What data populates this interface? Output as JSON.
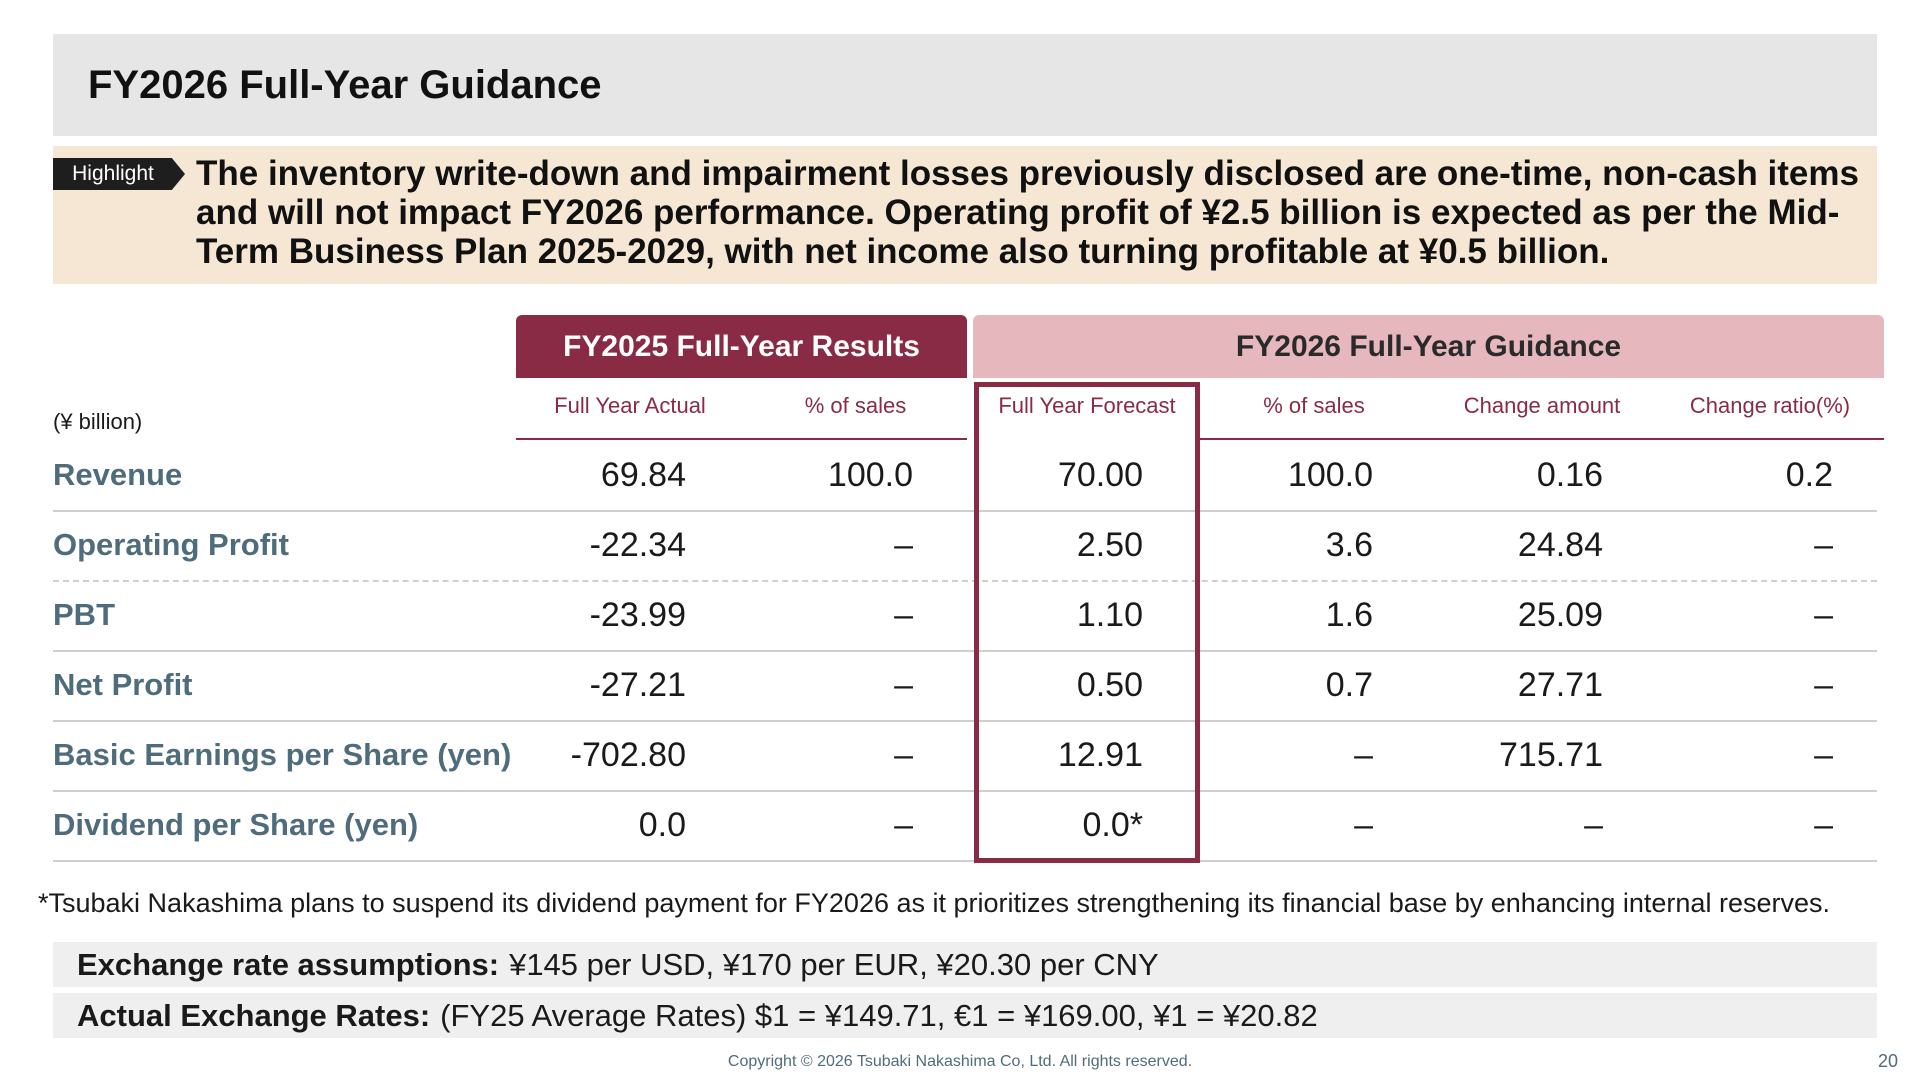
{
  "title": "FY2026 Full-Year Guidance",
  "highlight": {
    "tag": "Highlight",
    "text": "The inventory write-down and impairment losses previously disclosed are one-time, non-cash items and will not impact FY2026 performance. Operating profit of ¥2.5 billion is expected as per the Mid-Term Business Plan 2025-2029, with net income also turning profitable at ¥0.5 billion."
  },
  "table": {
    "unit": "(¥ billion)",
    "group_results": "FY2025 Full-Year Results",
    "group_guidance": "FY2026 Full-Year Guidance",
    "columns": [
      "Full Year Actual",
      "% of sales",
      "Full Year Forecast",
      "% of sales",
      "Change amount",
      "Change ratio(%)"
    ],
    "rows": [
      {
        "label": "Revenue",
        "values": [
          "69.84",
          "100.0",
          "70.00",
          "100.0",
          "0.16",
          "0.2"
        ]
      },
      {
        "label": "Operating Profit",
        "values": [
          "-22.34",
          "–",
          "2.50",
          "3.6",
          "24.84",
          "–"
        ]
      },
      {
        "label": "PBT",
        "values": [
          "-23.99",
          "–",
          "1.10",
          "1.6",
          "25.09",
          "–"
        ]
      },
      {
        "label": "Net Profit",
        "values": [
          "-27.21",
          "–",
          "0.50",
          "0.7",
          "27.71",
          "–"
        ]
      },
      {
        "label": "Basic Earnings per Share (yen)",
        "values": [
          "-702.80",
          "–",
          "12.91",
          "–",
          "715.71",
          "–"
        ]
      },
      {
        "label": "Dividend per Share (yen)",
        "values": [
          "0.0",
          "–",
          "0.0*",
          "–",
          "–",
          "–"
        ]
      }
    ]
  },
  "footnote": "*Tsubaki Nakashima plans to suspend its dividend payment for FY2026 as it prioritizes strengthening its financial base by enhancing internal reserves.",
  "fx_assumptions": {
    "label": "Exchange rate assumptions:",
    "text": "¥145 per USD, ¥170 per EUR, ¥20.30 per CNY"
  },
  "fx_actual": {
    "label": "Actual Exchange Rates:",
    "text": "(FY25 Average Rates) $1 = ¥149.71, €1 = ¥169.00, ¥1 = ¥20.82"
  },
  "copyright": "Copyright © 2026 Tsubaki Nakashima Co, Ltd. All rights reserved.",
  "page_number": "20",
  "colors": {
    "accent": "#8a2b45",
    "guidance_header": "#e6b8be",
    "highlight_bg": "#f5e7d3",
    "row_label": "#4f6c7c"
  }
}
